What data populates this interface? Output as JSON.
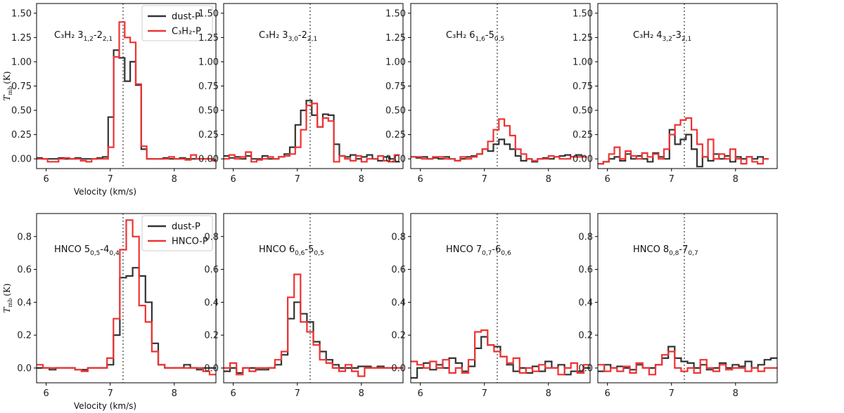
{
  "chart_data": [
    {
      "type": "line",
      "panel_label": {
        "species": "C₃H₂",
        "line": "3",
        "sub1": "1,2",
        "mid": "-2",
        "sub2": "2,1"
      },
      "ylabel": {
        "main": "T",
        "sub": "mb",
        "unit": "(K)"
      },
      "xlabel": "Velocity (km/s)",
      "xlim": [
        5.85,
        8.65
      ],
      "ylim": [
        -0.1,
        1.6
      ],
      "xticks": [
        "6",
        "7",
        "8"
      ],
      "yticks": [
        "0.00",
        "0.25",
        "0.50",
        "0.75",
        "1.00",
        "1.25",
        "1.50"
      ],
      "vline": 7.2,
      "legend": [
        "dust-P",
        "C₃H₂-P"
      ],
      "step": 0.086,
      "series": [
        {
          "name": "dust-P",
          "color": "#333333",
          "x0": 5.85,
          "values": [
            0.01,
            0.0,
            0.0,
            0.0,
            0.01,
            0.0,
            0.0,
            0.01,
            0.0,
            0.0,
            0.0,
            0.01,
            0.02,
            0.43,
            1.12,
            1.04,
            0.8,
            1.0,
            0.76,
            0.1,
            0.0,
            0.0,
            0.0,
            0.01,
            0.0,
            0.0,
            0.01,
            0.0,
            0.0,
            0.0,
            0.0,
            0.0,
            -0.01,
            0.0
          ]
        },
        {
          "name": "C₃H₂-P",
          "color": "#ee3333",
          "x0": 5.85,
          "values": [
            0.0,
            0.0,
            -0.03,
            -0.03,
            0.0,
            0.01,
            0.0,
            0.0,
            -0.02,
            -0.03,
            0.0,
            0.0,
            0.0,
            0.12,
            1.05,
            1.41,
            1.25,
            1.2,
            0.77,
            0.13,
            0.0,
            0.0,
            0.0,
            0.0,
            0.02,
            0.0,
            0.0,
            -0.01,
            0.04,
            0.0,
            0.0,
            0.0,
            -0.02,
            0.0
          ]
        }
      ]
    },
    {
      "type": "line",
      "panel_label": {
        "species": "C₃H₂",
        "line": "3",
        "sub1": "3,0",
        "mid": "-2",
        "sub2": "2,1"
      },
      "xlabel": "",
      "xlim": [
        5.85,
        8.65
      ],
      "ylim": [
        -0.1,
        1.6
      ],
      "xticks": [
        "6",
        "7",
        "8"
      ],
      "yticks": [
        "0.00",
        "0.25",
        "0.50",
        "0.75",
        "1.00",
        "1.25",
        "1.50"
      ],
      "vline": 7.2,
      "step": 0.086,
      "series": [
        {
          "name": "dust-P",
          "color": "#333333",
          "x0": 5.85,
          "values": [
            0.03,
            0.01,
            0.02,
            0.0,
            0.03,
            0.0,
            0.0,
            0.03,
            0.0,
            0.0,
            0.02,
            0.05,
            0.12,
            0.35,
            0.5,
            0.6,
            0.45,
            0.33,
            0.46,
            0.45,
            0.15,
            0.03,
            0.02,
            0.04,
            0.0,
            0.02,
            0.04,
            0.0,
            -0.02,
            0.02,
            0.0,
            -0.03
          ]
        },
        {
          "name": "C₃H₂-P",
          "color": "#ee3333",
          "x0": 5.85,
          "values": [
            0.0,
            0.04,
            0.0,
            0.02,
            0.07,
            -0.03,
            -0.01,
            0.0,
            0.02,
            0.0,
            0.02,
            0.03,
            0.05,
            0.12,
            0.3,
            0.55,
            0.57,
            0.33,
            0.42,
            0.39,
            -0.03,
            0.03,
            0.0,
            -0.02,
            0.03,
            -0.03,
            0.0,
            0.0,
            0.03,
            -0.02,
            -0.03,
            0.04
          ]
        }
      ]
    },
    {
      "type": "line",
      "panel_label": {
        "species": "C₃H₂",
        "line": "6",
        "sub1": "1,6",
        "mid": "-5",
        "sub2": "0,5"
      },
      "xlabel": "",
      "xlim": [
        5.85,
        8.65
      ],
      "ylim": [
        -0.1,
        1.6
      ],
      "xticks": [
        "6",
        "7",
        "8"
      ],
      "yticks": [
        "0.00",
        "0.25",
        "0.50",
        "0.75",
        "1.00",
        "1.25",
        "1.50"
      ],
      "vline": 7.2,
      "step": 0.086,
      "series": [
        {
          "name": "dust-P",
          "color": "#333333",
          "x0": 5.85,
          "values": [
            0.02,
            0.01,
            0.02,
            0.0,
            0.01,
            0.0,
            0.02,
            0.0,
            -0.02,
            0.0,
            0.02,
            0.03,
            0.05,
            0.1,
            0.08,
            0.15,
            0.2,
            0.15,
            0.1,
            0.03,
            -0.02,
            0.0,
            -0.03,
            0.0,
            0.01,
            0.0,
            0.02,
            0.03,
            0.04,
            0.02,
            0.04,
            0.02
          ]
        },
        {
          "name": "C₃H₂-P",
          "color": "#ee3333",
          "x0": 5.85,
          "values": [
            0.02,
            0.02,
            0.0,
            0.0,
            0.02,
            0.02,
            0.0,
            0.0,
            -0.02,
            0.02,
            0.0,
            0.02,
            0.05,
            0.1,
            0.18,
            0.3,
            0.41,
            0.34,
            0.24,
            0.1,
            0.05,
            0.0,
            -0.02,
            0.0,
            0.0,
            0.03,
            0.02,
            0.0,
            0.0,
            0.02,
            0.02,
            0.02
          ]
        }
      ]
    },
    {
      "type": "line",
      "panel_label": {
        "species": "C₃H₂",
        "line": "4",
        "sub1": "3,2",
        "mid": "-3",
        "sub2": "2,1"
      },
      "xlabel": "",
      "xlim": [
        5.85,
        8.65
      ],
      "ylim": [
        -0.1,
        1.6
      ],
      "xticks": [
        "6",
        "7",
        "8"
      ],
      "yticks": [
        "0.00",
        "0.25",
        "0.50",
        "0.75",
        "1.00",
        "1.25",
        "1.50"
      ],
      "vline": 7.2,
      "step": 0.086,
      "series": [
        {
          "name": "dust-P",
          "color": "#333333",
          "x0": 5.85,
          "values": [
            -0.05,
            -0.03,
            0.0,
            0.02,
            -0.02,
            0.05,
            0.0,
            0.03,
            0.0,
            -0.03,
            0.06,
            0.02,
            0.0,
            0.3,
            0.15,
            0.2,
            0.25,
            0.1,
            -0.08,
            0.02,
            -0.02,
            0.05,
            0.0,
            0.03,
            -0.03,
            0.02,
            0.0,
            0.02,
            0.0,
            0.02,
            0.0
          ]
        },
        {
          "name": "C₃H₂-P",
          "color": "#ee3333",
          "x0": 5.85,
          "values": [
            -0.05,
            -0.03,
            0.05,
            0.12,
            0.0,
            0.08,
            0.03,
            0.0,
            0.06,
            0.02,
            0.05,
            0.0,
            0.1,
            0.25,
            0.35,
            0.4,
            0.42,
            0.3,
            0.15,
            0.02,
            0.2,
            0.0,
            0.05,
            0.0,
            0.1,
            0.0,
            -0.05,
            0.02,
            -0.03,
            -0.05,
            0.0
          ]
        }
      ]
    },
    {
      "type": "line",
      "panel_label": {
        "species": "HNCO",
        "line": "5",
        "sub1": "0,5",
        "mid": "-4",
        "sub2": "0,4"
      },
      "ylabel": {
        "main": "T",
        "sub": "mb",
        "unit": "(K)"
      },
      "xlabel": "Velocity (km/s)",
      "xlim": [
        5.85,
        8.65
      ],
      "ylim": [
        -0.09,
        0.94
      ],
      "xticks": [
        "6",
        "7",
        "8"
      ],
      "yticks": [
        "0.0",
        "0.2",
        "0.4",
        "0.6",
        "0.8"
      ],
      "vline": 7.2,
      "legend": [
        "dust-P",
        "HNCO-P"
      ],
      "step": 0.1,
      "series": [
        {
          "name": "dust-P",
          "color": "#333333",
          "x0": 5.85,
          "values": [
            0.0,
            0.0,
            -0.01,
            0.0,
            0.0,
            0.0,
            -0.01,
            -0.01,
            0.0,
            0.0,
            0.0,
            0.02,
            0.2,
            0.55,
            0.56,
            0.61,
            0.56,
            0.4,
            0.15,
            0.02,
            0.0,
            0.0,
            0.0,
            0.02,
            0.0,
            -0.01,
            0.0,
            0.0
          ]
        },
        {
          "name": "HNCO-P",
          "color": "#ee3333",
          "x0": 5.85,
          "values": [
            0.02,
            0.0,
            0.0,
            0.0,
            0.0,
            0.0,
            -0.01,
            -0.02,
            0.0,
            0.0,
            0.0,
            0.06,
            0.3,
            0.72,
            0.9,
            0.8,
            0.38,
            0.28,
            0.1,
            0.02,
            0.0,
            0.0,
            0.0,
            0.0,
            0.0,
            0.0,
            -0.02,
            -0.04
          ]
        }
      ]
    },
    {
      "type": "line",
      "panel_label": {
        "species": "HNCO",
        "line": "6",
        "sub1": "0,6",
        "mid": "-5",
        "sub2": "0,5"
      },
      "xlabel": "",
      "xlim": [
        5.85,
        8.65
      ],
      "ylim": [
        -0.09,
        0.94
      ],
      "xticks": [
        "6",
        "7",
        "8"
      ],
      "yticks": [
        "0.0",
        "0.2",
        "0.4",
        "0.6",
        "0.8"
      ],
      "vline": 7.2,
      "step": 0.1,
      "series": [
        {
          "name": "dust-P",
          "color": "#333333",
          "x0": 5.85,
          "values": [
            -0.02,
            0.0,
            -0.03,
            0.0,
            0.0,
            -0.01,
            -0.01,
            0.0,
            0.02,
            0.08,
            0.3,
            0.4,
            0.33,
            0.28,
            0.16,
            0.1,
            0.05,
            0.02,
            0.0,
            0.0,
            0.0,
            0.01,
            0.01,
            0.0,
            0.01,
            0.0,
            0.0,
            0.0
          ]
        },
        {
          "name": "HNCO-P",
          "color": "#ee3333",
          "x0": 5.85,
          "values": [
            0.0,
            0.03,
            -0.04,
            0.0,
            -0.02,
            0.0,
            0.0,
            0.0,
            0.05,
            0.1,
            0.43,
            0.57,
            0.28,
            0.22,
            0.14,
            0.05,
            0.03,
            0.0,
            -0.02,
            0.02,
            -0.02,
            -0.05,
            0.0,
            0.0,
            0.0,
            0.0,
            0.0,
            0.0
          ]
        }
      ]
    },
    {
      "type": "line",
      "panel_label": {
        "species": "HNCO",
        "line": "7",
        "sub1": "0,7",
        "mid": "-6",
        "sub2": "0,6"
      },
      "xlabel": "",
      "xlim": [
        5.85,
        8.65
      ],
      "ylim": [
        -0.09,
        0.94
      ],
      "xticks": [
        "6",
        "7",
        "8"
      ],
      "yticks": [
        "0.0",
        "0.2",
        "0.4",
        "0.6",
        "0.8"
      ],
      "vline": 7.2,
      "step": 0.1,
      "series": [
        {
          "name": "dust-P",
          "color": "#333333",
          "x0": 5.85,
          "values": [
            -0.06,
            0.0,
            0.03,
            -0.01,
            0.02,
            0.0,
            0.06,
            0.03,
            -0.02,
            0.01,
            0.12,
            0.19,
            0.14,
            0.13,
            0.07,
            0.02,
            -0.02,
            0.0,
            -0.03,
            0.01,
            -0.02,
            0.04,
            0.0,
            0.02,
            -0.04,
            -0.02,
            -0.02,
            0.0
          ]
        },
        {
          "name": "HNCO-P",
          "color": "#ee3333",
          "x0": 5.85,
          "values": [
            0.04,
            0.02,
            0.0,
            0.04,
            0.0,
            0.05,
            -0.03,
            0.0,
            -0.03,
            0.05,
            0.22,
            0.23,
            0.14,
            0.1,
            0.07,
            0.03,
            0.06,
            -0.03,
            0.0,
            -0.02,
            0.02,
            0.0,
            0.0,
            -0.04,
            0.0,
            0.03,
            -0.03,
            0.02
          ]
        }
      ]
    },
    {
      "type": "line",
      "panel_label": {
        "species": "HNCO",
        "line": "8",
        "sub1": "0,8",
        "mid": "-7",
        "sub2": "0,7"
      },
      "xlabel": "",
      "xlim": [
        5.85,
        8.65
      ],
      "ylim": [
        -0.09,
        0.94
      ],
      "xticks": [
        "6",
        "7",
        "8"
      ],
      "yticks": [
        "0.0",
        "0.2",
        "0.4",
        "0.6",
        "0.8"
      ],
      "vline": 7.2,
      "step": 0.1,
      "series": [
        {
          "name": "dust-P",
          "color": "#333333",
          "x0": 5.85,
          "values": [
            -0.02,
            0.02,
            0.0,
            0.01,
            0.0,
            -0.01,
            0.02,
            0.0,
            0.0,
            0.02,
            0.06,
            0.13,
            0.06,
            0.04,
            0.03,
            0.0,
            0.02,
            -0.01,
            0.0,
            0.03,
            0.0,
            0.02,
            0.01,
            0.04,
            0.0,
            0.02,
            0.05,
            0.06
          ]
        },
        {
          "name": "HNCO-P",
          "color": "#ee3333",
          "x0": 5.85,
          "values": [
            0.02,
            -0.02,
            0.0,
            -0.02,
            0.01,
            -0.03,
            0.03,
            0.0,
            -0.04,
            0.02,
            0.08,
            0.1,
            0.0,
            -0.02,
            0.0,
            -0.03,
            0.05,
            0.0,
            -0.02,
            0.02,
            -0.01,
            0.0,
            0.0,
            -0.02,
            0.0,
            -0.02,
            0.0,
            0.0
          ]
        }
      ]
    }
  ]
}
